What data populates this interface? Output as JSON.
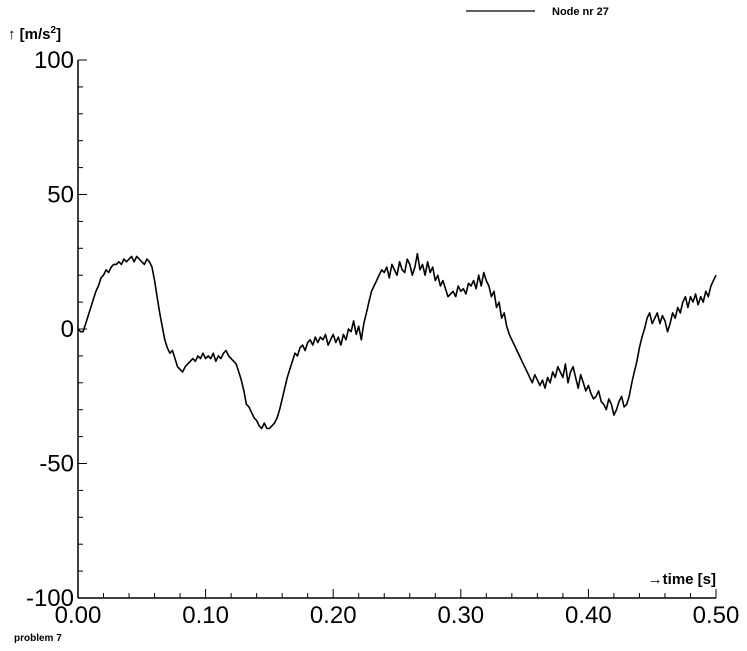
{
  "chart_data": {
    "type": "line",
    "title": "",
    "xlabel": "→time [s]",
    "ylabel": "↑ [m/s",
    "ylabel_sup": "2",
    "ylabel_close": "]",
    "xlim": [
      0.0,
      0.5
    ],
    "ylim": [
      -100,
      100
    ],
    "x_ticks": [
      0.0,
      0.1,
      0.2,
      0.3,
      0.4,
      0.5
    ],
    "x_tick_labels": [
      "0.00",
      "0.10",
      "0.20",
      "0.30",
      "0.40",
      "0.50"
    ],
    "y_ticks": [
      -100,
      -50,
      0,
      50,
      100
    ],
    "y_tick_labels": [
      "-100",
      "-50",
      "0",
      "50",
      "100"
    ],
    "grid": false,
    "legend_position": "top-right",
    "series": [
      {
        "name": "Node nr 27",
        "color": "#000000",
        "x": [
          0.0,
          0.002,
          0.004,
          0.006,
          0.008,
          0.01,
          0.012,
          0.014,
          0.016,
          0.018,
          0.02,
          0.022,
          0.024,
          0.026,
          0.028,
          0.03,
          0.032,
          0.034,
          0.036,
          0.038,
          0.04,
          0.042,
          0.044,
          0.046,
          0.048,
          0.05,
          0.052,
          0.054,
          0.056,
          0.058,
          0.06,
          0.062,
          0.064,
          0.066,
          0.068,
          0.07,
          0.072,
          0.074,
          0.076,
          0.078,
          0.08,
          0.082,
          0.084,
          0.086,
          0.088,
          0.09,
          0.092,
          0.094,
          0.096,
          0.098,
          0.1,
          0.102,
          0.104,
          0.106,
          0.108,
          0.11,
          0.112,
          0.114,
          0.116,
          0.118,
          0.12,
          0.122,
          0.124,
          0.126,
          0.128,
          0.13,
          0.132,
          0.134,
          0.136,
          0.138,
          0.14,
          0.142,
          0.144,
          0.146,
          0.148,
          0.15,
          0.152,
          0.154,
          0.156,
          0.158,
          0.16,
          0.162,
          0.164,
          0.166,
          0.168,
          0.17,
          0.172,
          0.174,
          0.176,
          0.178,
          0.18,
          0.182,
          0.184,
          0.186,
          0.188,
          0.19,
          0.192,
          0.194,
          0.196,
          0.198,
          0.2,
          0.202,
          0.204,
          0.206,
          0.208,
          0.21,
          0.212,
          0.214,
          0.216,
          0.218,
          0.22,
          0.222,
          0.224,
          0.226,
          0.228,
          0.23,
          0.232,
          0.234,
          0.236,
          0.238,
          0.24,
          0.242,
          0.244,
          0.246,
          0.248,
          0.25,
          0.252,
          0.254,
          0.256,
          0.258,
          0.26,
          0.262,
          0.264,
          0.266,
          0.268,
          0.27,
          0.272,
          0.274,
          0.276,
          0.278,
          0.28,
          0.282,
          0.284,
          0.286,
          0.288,
          0.29,
          0.292,
          0.294,
          0.296,
          0.298,
          0.3,
          0.302,
          0.304,
          0.306,
          0.308,
          0.31,
          0.312,
          0.314,
          0.316,
          0.318,
          0.32,
          0.322,
          0.324,
          0.326,
          0.328,
          0.33,
          0.332,
          0.334,
          0.336,
          0.338,
          0.34,
          0.342,
          0.344,
          0.346,
          0.348,
          0.35,
          0.352,
          0.354,
          0.356,
          0.358,
          0.36,
          0.362,
          0.364,
          0.366,
          0.368,
          0.37,
          0.372,
          0.374,
          0.376,
          0.378,
          0.38,
          0.382,
          0.384,
          0.386,
          0.388,
          0.39,
          0.392,
          0.394,
          0.396,
          0.398,
          0.4,
          0.402,
          0.404,
          0.406,
          0.408,
          0.41,
          0.412,
          0.414,
          0.416,
          0.418,
          0.42,
          0.422,
          0.424,
          0.426,
          0.428,
          0.43,
          0.432,
          0.434,
          0.436,
          0.438,
          0.44,
          0.442,
          0.444,
          0.446,
          0.448,
          0.45,
          0.452,
          0.454,
          0.456,
          0.458,
          0.46,
          0.462,
          0.464,
          0.466,
          0.468,
          0.47,
          0.472,
          0.474,
          0.476,
          0.478,
          0.48,
          0.482,
          0.484,
          0.486,
          0.488,
          0.49,
          0.492,
          0.494,
          0.496,
          0.498,
          0.5
        ],
        "y": [
          0,
          -1,
          -1,
          2,
          5,
          8,
          11,
          14,
          16,
          19,
          20,
          22,
          21,
          23,
          24,
          24,
          25,
          24,
          26,
          25,
          26,
          27,
          25,
          27,
          26,
          25,
          24,
          26,
          25,
          23,
          18,
          12,
          6,
          1,
          -4,
          -7,
          -9,
          -8,
          -11,
          -14,
          -15,
          -16,
          -14,
          -13,
          -12,
          -11,
          -12,
          -10,
          -11,
          -9,
          -11,
          -10,
          -11,
          -9,
          -12,
          -10,
          -11,
          -9,
          -8,
          -10,
          -11,
          -12,
          -13,
          -16,
          -19,
          -23,
          -28,
          -29,
          -31,
          -33,
          -34,
          -36,
          -37,
          -35,
          -37,
          -37,
          -36,
          -35,
          -33,
          -30,
          -26,
          -22,
          -18,
          -15,
          -12,
          -9,
          -10,
          -7,
          -6,
          -8,
          -5,
          -4,
          -6,
          -3,
          -5,
          -3,
          -4,
          -2,
          -6,
          -4,
          -2,
          -5,
          -3,
          -6,
          -2,
          -4,
          0,
          -1,
          3,
          -2,
          1,
          -4,
          2,
          6,
          10,
          14,
          16,
          18,
          20,
          22,
          21,
          23,
          19,
          24,
          22,
          20,
          25,
          22,
          21,
          26,
          24,
          20,
          23,
          28,
          22,
          24,
          20,
          25,
          21,
          23,
          18,
          20,
          16,
          18,
          15,
          12,
          13,
          14,
          12,
          16,
          14,
          15,
          13,
          17,
          16,
          18,
          15,
          20,
          16,
          21,
          18,
          16,
          12,
          14,
          8,
          10,
          4,
          6,
          1,
          -2,
          -4,
          -6,
          -8,
          -10,
          -12,
          -14,
          -16,
          -18,
          -20,
          -17,
          -19,
          -21,
          -19,
          -22,
          -18,
          -20,
          -16,
          -18,
          -14,
          -16,
          -18,
          -13,
          -20,
          -16,
          -14,
          -18,
          -22,
          -17,
          -20,
          -23,
          -21,
          -24,
          -26,
          -25,
          -23,
          -27,
          -28,
          -30,
          -26,
          -28,
          -32,
          -30,
          -27,
          -25,
          -29,
          -28,
          -25,
          -20,
          -16,
          -12,
          -7,
          -3,
          0,
          4,
          6,
          2,
          4,
          6,
          2,
          5,
          3,
          -1,
          2,
          6,
          4,
          8,
          6,
          10,
          12,
          8,
          12,
          10,
          13,
          9,
          12,
          10,
          14,
          12,
          16,
          18,
          20
        ]
      }
    ]
  },
  "footer": {
    "text": "problem 7"
  }
}
